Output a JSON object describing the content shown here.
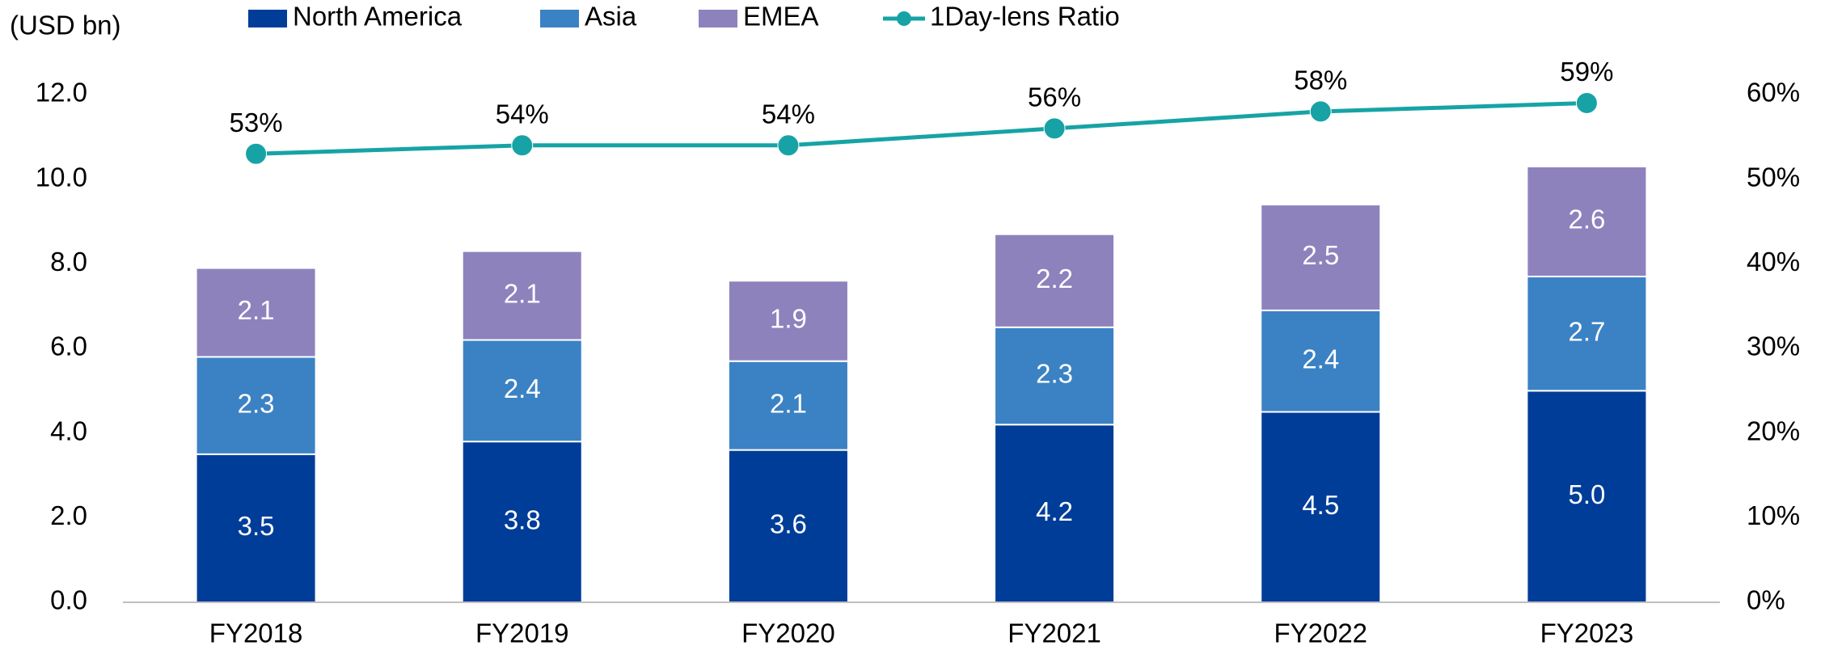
{
  "chart_data": {
    "type": "bar",
    "stacked": true,
    "unit_label": "(USD bn)",
    "categories": [
      "FY2018",
      "FY2019",
      "FY2020",
      "FY2021",
      "FY2022",
      "FY2023"
    ],
    "series": [
      {
        "name": "North America",
        "color": "#003d99",
        "values": [
          3.5,
          3.8,
          3.6,
          4.2,
          4.5,
          5.0
        ],
        "value_labels": [
          "3.5",
          "3.8",
          "3.6",
          "4.2",
          "4.5",
          "5.0"
        ]
      },
      {
        "name": "Asia",
        "color": "#3b82c4",
        "values": [
          2.3,
          2.4,
          2.1,
          2.3,
          2.4,
          2.7
        ],
        "value_labels": [
          "2.3",
          "2.4",
          "2.1",
          "2.3",
          "2.4",
          "2.7"
        ]
      },
      {
        "name": "EMEA",
        "color": "#8e82bd",
        "values": [
          2.1,
          2.1,
          1.9,
          2.2,
          2.5,
          2.6
        ],
        "value_labels": [
          "2.1",
          "2.1",
          "1.9",
          "2.2",
          "2.5",
          "2.6"
        ]
      },
      {
        "name": "1Day-lens Ratio",
        "type": "line",
        "axis": "y2",
        "color": "#17a3a5",
        "values": [
          53,
          54,
          54,
          56,
          58,
          59
        ],
        "value_labels": [
          "53%",
          "54%",
          "54%",
          "56%",
          "58%",
          "59%"
        ]
      }
    ],
    "ylim": [
      0,
      12
    ],
    "yticks": [
      {
        "value": 0,
        "label": "0.0"
      },
      {
        "value": 2,
        "label": "2.0"
      },
      {
        "value": 4,
        "label": "4.0"
      },
      {
        "value": 6,
        "label": "6.0"
      },
      {
        "value": 8,
        "label": "8.0"
      },
      {
        "value": 10,
        "label": "10.0"
      },
      {
        "value": 12,
        "label": "12.0"
      }
    ],
    "y2lim": [
      0,
      60
    ],
    "y2ticks": [
      {
        "value": 0,
        "label": "0%"
      },
      {
        "value": 10,
        "label": "10%"
      },
      {
        "value": 20,
        "label": "20%"
      },
      {
        "value": 30,
        "label": "30%"
      },
      {
        "value": 40,
        "label": "40%"
      },
      {
        "value": 50,
        "label": "50%"
      },
      {
        "value": 60,
        "label": "60%"
      }
    ],
    "grid": false,
    "legend": "top"
  }
}
